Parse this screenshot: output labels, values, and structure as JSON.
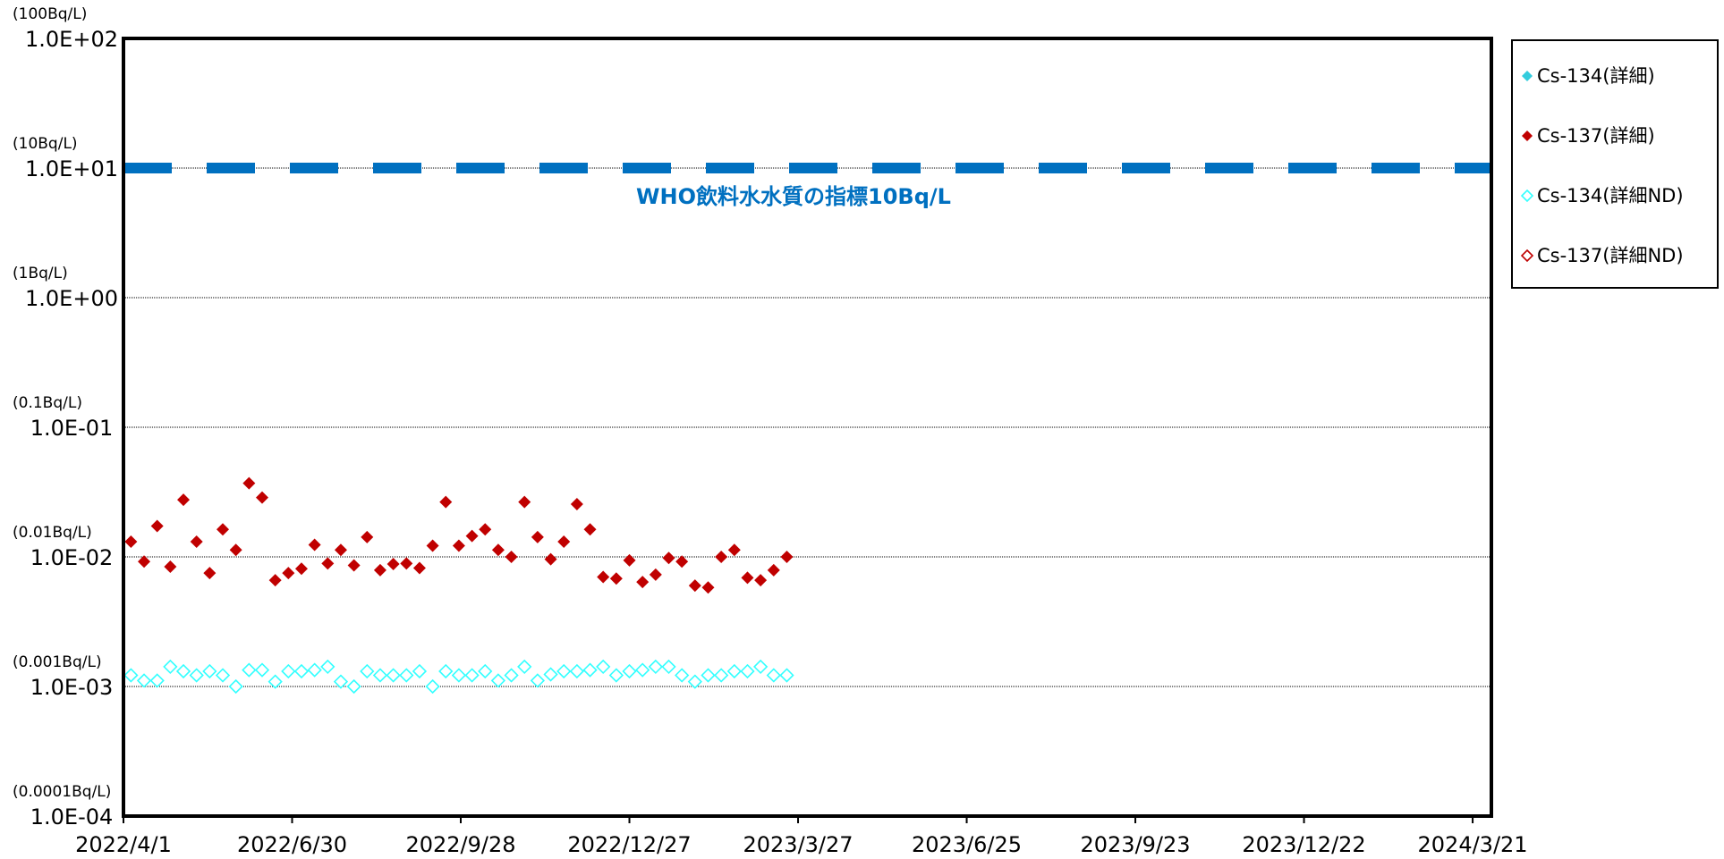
{
  "chart_data": {
    "type": "scatter",
    "yscale": "log",
    "grid": true,
    "legend": "right",
    "ylim": [
      0.0001,
      100
    ],
    "yticks": [
      {
        "value": 0.0001,
        "label": "1.0E-04"
      },
      {
        "value": 0.001,
        "label": "1.0E-03"
      },
      {
        "value": 0.01,
        "label": "1.0E-02"
      },
      {
        "value": 0.1,
        "label": "1.0E-01"
      },
      {
        "value": 1,
        "label": "1.0E+00"
      },
      {
        "value": 10,
        "label": "1.0E+01"
      },
      {
        "value": 100,
        "label": "1.0E+02"
      }
    ],
    "ytick_units": [
      "(0.0001Bq/L)",
      "(0.001Bq/L)",
      "(0.01Bq/L)",
      "(0.1Bq/L)",
      "(1Bq/L)",
      "(10Bq/L)",
      "(100Bq/L)"
    ],
    "xlim": [
      "2022/4/1",
      "2024/3/31"
    ],
    "xticks": [
      "2022/4/1",
      "2022/6/30",
      "2022/9/28",
      "2022/12/27",
      "2023/3/27",
      "2023/6/25",
      "2023/9/23",
      "2023/12/22",
      "2024/3/21"
    ],
    "reference_line": {
      "value": 10,
      "label": "WHO飲料水水質の指標10Bq/L",
      "color": "#0070c0"
    },
    "series": [
      {
        "name": "Cs-134(詳細)",
        "color": "#33ccdd",
        "marker": "filled",
        "x": [],
        "values": []
      },
      {
        "name": "Cs-137(詳細)",
        "color": "#c00000",
        "marker": "filled",
        "x": [
          "2022/4/5",
          "2022/4/12",
          "2022/4/19",
          "2022/4/26",
          "2022/5/3",
          "2022/5/10",
          "2022/5/17",
          "2022/5/24",
          "2022/5/31",
          "2022/6/7",
          "2022/6/14",
          "2022/6/21",
          "2022/6/28",
          "2022/7/5",
          "2022/7/12",
          "2022/7/19",
          "2022/7/26",
          "2022/8/2",
          "2022/8/9",
          "2022/8/16",
          "2022/8/23",
          "2022/8/30",
          "2022/9/6",
          "2022/9/13",
          "2022/9/20",
          "2022/9/27",
          "2022/10/4",
          "2022/10/11",
          "2022/10/18",
          "2022/10/25",
          "2022/11/1",
          "2022/11/8",
          "2022/11/15",
          "2022/11/22",
          "2022/11/29",
          "2022/12/6",
          "2022/12/13",
          "2022/12/20",
          "2022/12/27",
          "2023/1/3",
          "2023/1/10",
          "2023/1/17",
          "2023/1/24",
          "2023/1/31",
          "2023/2/7",
          "2023/2/14",
          "2023/2/21",
          "2023/2/28",
          "2023/3/7",
          "2023/3/14",
          "2023/3/21"
        ],
        "values": [
          0.0131,
          0.0092,
          0.0173,
          0.0084,
          0.0276,
          0.0131,
          0.0075,
          0.0163,
          0.0113,
          0.037,
          0.0287,
          0.0066,
          0.0075,
          0.0081,
          0.0124,
          0.0089,
          0.0113,
          0.0086,
          0.0142,
          0.0079,
          0.0088,
          0.0089,
          0.0082,
          0.0122,
          0.0265,
          0.0122,
          0.0145,
          0.0163,
          0.0113,
          0.01,
          0.0265,
          0.0142,
          0.0096,
          0.0131,
          0.0255,
          0.0163,
          0.007,
          0.0068,
          0.0094,
          0.0064,
          0.0073,
          0.0098,
          0.0092,
          0.006,
          0.0058,
          0.01,
          0.0113,
          0.0069,
          0.0066,
          0.0079,
          0.01
        ]
      },
      {
        "name": "Cs-134(詳細ND)",
        "color": "#33ffff",
        "marker": "hollow",
        "x": [
          "2022/4/5",
          "2022/4/12",
          "2022/4/19",
          "2022/4/26",
          "2022/5/3",
          "2022/5/10",
          "2022/5/17",
          "2022/5/24",
          "2022/5/31",
          "2022/6/7",
          "2022/6/14",
          "2022/6/21",
          "2022/6/28",
          "2022/7/5",
          "2022/7/12",
          "2022/7/19",
          "2022/7/26",
          "2022/8/2",
          "2022/8/9",
          "2022/8/16",
          "2022/8/23",
          "2022/8/30",
          "2022/9/6",
          "2022/9/13",
          "2022/9/20",
          "2022/9/27",
          "2022/10/4",
          "2022/10/11",
          "2022/10/18",
          "2022/10/25",
          "2022/11/1",
          "2022/11/8",
          "2022/11/15",
          "2022/11/22",
          "2022/11/29",
          "2022/12/6",
          "2022/12/13",
          "2022/12/20",
          "2022/12/27",
          "2023/1/3",
          "2023/1/10",
          "2023/1/17",
          "2023/1/24",
          "2023/1/31",
          "2023/2/7",
          "2023/2/14",
          "2023/2/21",
          "2023/2/28",
          "2023/3/7",
          "2023/3/14",
          "2023/3/21"
        ],
        "values": [
          0.00122,
          0.00111,
          0.00111,
          0.00142,
          0.00131,
          0.00122,
          0.00131,
          0.00122,
          0.001,
          0.00134,
          0.00134,
          0.00109,
          0.00131,
          0.00131,
          0.00134,
          0.00142,
          0.00109,
          0.001,
          0.00131,
          0.00122,
          0.00122,
          0.00122,
          0.00131,
          0.001,
          0.00131,
          0.00122,
          0.00122,
          0.00131,
          0.00111,
          0.00122,
          0.00142,
          0.00111,
          0.00124,
          0.00131,
          0.00131,
          0.00134,
          0.00142,
          0.00122,
          0.00131,
          0.00134,
          0.00142,
          0.00142,
          0.00122,
          0.00109,
          0.00122,
          0.00122,
          0.00131,
          0.00131,
          0.00142,
          0.00122,
          0.00122
        ]
      },
      {
        "name": "Cs-137(詳細ND)",
        "color": "#c00000",
        "marker": "hollow",
        "x": [],
        "values": []
      }
    ]
  }
}
